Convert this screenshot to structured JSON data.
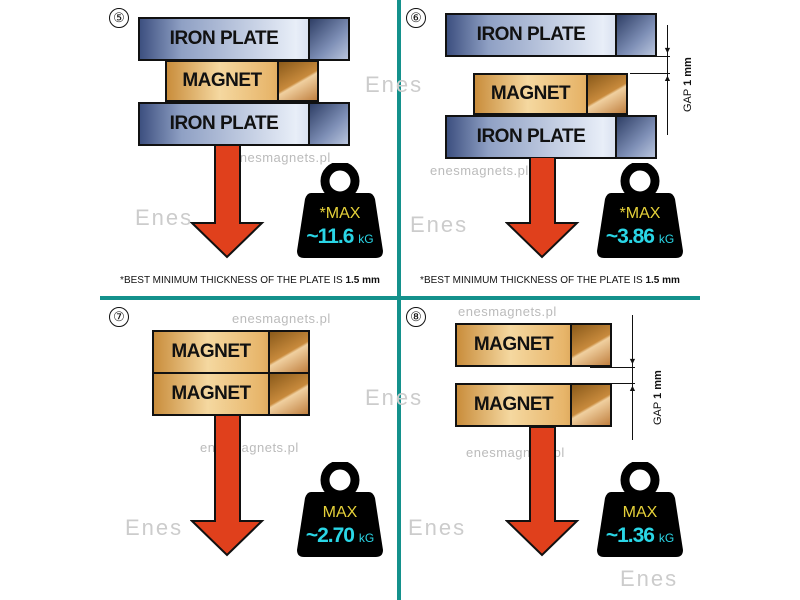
{
  "panels": [
    {
      "number": "⑤",
      "blocks": [
        "IRON PLATE",
        "MAGNET",
        "IRON PLATE"
      ],
      "max_label": "*MAX",
      "value": "~11.6",
      "unit": "kG",
      "footnote": "*BEST MINIMUM THICKNESS OF THE PLATE IS ",
      "footnote_bold": "1.5 mm"
    },
    {
      "number": "⑥",
      "blocks": [
        "IRON PLATE",
        "MAGNET",
        "IRON PLATE"
      ],
      "gap_label": "GAP",
      "gap_value": "1 mm",
      "max_label": "*MAX",
      "value": "~3.86",
      "unit": "kG",
      "footnote": "*BEST MINIMUM THICKNESS OF THE PLATE IS ",
      "footnote_bold": "1.5 mm"
    },
    {
      "number": "⑦",
      "blocks": [
        "MAGNET",
        "MAGNET"
      ],
      "max_label": "MAX",
      "value": "~2.70",
      "unit": "kG"
    },
    {
      "number": "⑧",
      "blocks": [
        "MAGNET",
        "MAGNET"
      ],
      "gap_label": "GAP",
      "gap_value": "1 mm",
      "max_label": "MAX",
      "value": "~1.36",
      "unit": "kG"
    }
  ],
  "watermark": "enesmagnets.pl",
  "watermark_logo": "Enes",
  "colors": {
    "divider": "#14918c",
    "arrow": "#e0401c",
    "weight": "#000000",
    "max": "#e6d23a",
    "value": "#2ad6e6"
  }
}
